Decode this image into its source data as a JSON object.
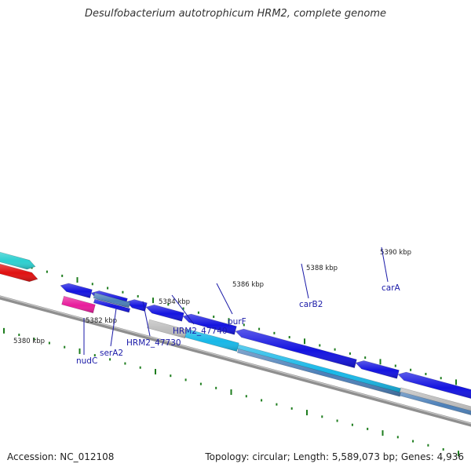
{
  "title": "Desulfobacterium autotrophicum HRM2, complete genome",
  "footer": {
    "accession": "Accession: NC_012108",
    "summary": "Topology: circular; Length: 5,589,073 bp; Genes: 4,936"
  },
  "colors": {
    "backbone": "#8f8f8f",
    "tick": "#1e7d1e",
    "label": "#1a1aa8",
    "gene_blue": "#1414e0",
    "gene_cyan": "#17b8e8",
    "gene_teal": "#2ccfd0",
    "gene_red": "#e01010",
    "gene_pink": "#e81c9c",
    "gene_gray": "#bdbdbd",
    "gene_steel": "#4b7fb8"
  },
  "scale": {
    "labels": [
      "5380 kbp",
      "5382 kbp",
      "5384 kbp",
      "5386 kbp",
      "5388 kbp",
      "5390 kbp"
    ]
  },
  "gene_labels": [
    "nudC",
    "serA2",
    "HRM2_47730",
    "HRM2_47740",
    "purF",
    "carB2",
    "carA"
  ],
  "icons": [
    "gene-arrow-icon"
  ]
}
